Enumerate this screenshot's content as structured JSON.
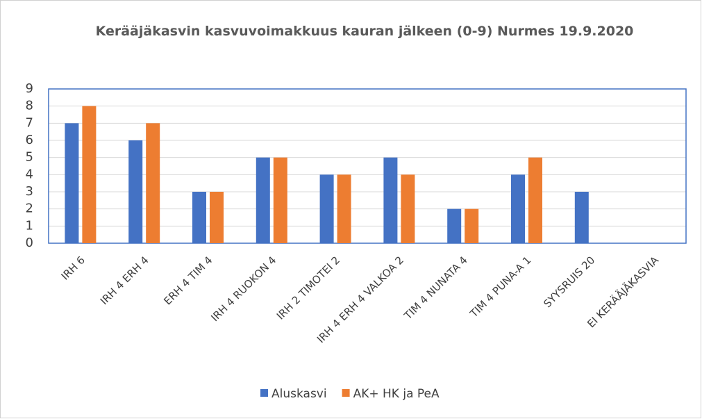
{
  "chart_data": {
    "type": "bar",
    "title": "Kerääjäkasvin kasvuvoimakkuus kauran jälkeen (0-9)  Nurmes 19.9.2020",
    "categories": [
      "IRH 6",
      "IRH 4 ERH 4",
      "ERH 4 TIM 4",
      "IRH 4 RUOKON 4",
      "IRH 2  TIMOTEI 2",
      "IRH 4 ERH 4 VALKOA 2",
      "TIM 4 NUNATA 4",
      "TIM 4 PUNA-A 1",
      "SYYSRUIS 20",
      "EI KERÄÄJÄKASVIA"
    ],
    "series": [
      {
        "name": "Aluskasvi",
        "color": "#4472c4",
        "values": [
          7,
          6,
          3,
          5,
          4,
          5,
          2,
          4,
          3,
          0
        ]
      },
      {
        "name": "AK+ HK ja PeA",
        "color": "#ed7d31",
        "values": [
          8,
          7,
          3,
          5,
          4,
          4,
          2,
          5,
          0,
          0
        ]
      }
    ],
    "ylim": [
      0,
      9
    ],
    "yticks": [
      0,
      1,
      2,
      3,
      4,
      5,
      6,
      7,
      8,
      9
    ],
    "grid": true,
    "legend": "bottom"
  }
}
